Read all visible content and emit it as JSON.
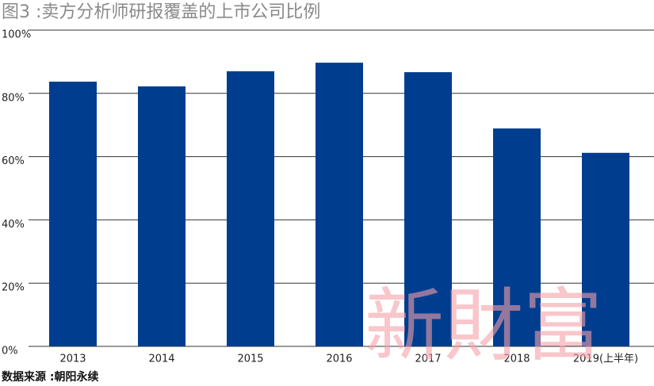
{
  "chart_data": {
    "type": "bar",
    "title": "图3 :卖方分析师研报覆盖的上市公司比例",
    "source": "数据来源 :朝阳永续",
    "watermark": "新財富",
    "categories": [
      "2013",
      "2014",
      "2015",
      "2016",
      "2017",
      "2018",
      "2019(上半年)"
    ],
    "values": [
      83.7,
      82.2,
      87.0,
      89.7,
      86.7,
      68.9,
      61.2
    ],
    "color": "#003d8f",
    "ylim": [
      0,
      100
    ],
    "yticks": [
      {
        "value": 0,
        "label": "0%"
      },
      {
        "value": 20,
        "label": "20%"
      },
      {
        "value": 40,
        "label": "40%"
      },
      {
        "value": 60,
        "label": "60%"
      },
      {
        "value": 80,
        "label": "80%"
      },
      {
        "value": 100,
        "label": "100%"
      }
    ],
    "grid": true
  }
}
